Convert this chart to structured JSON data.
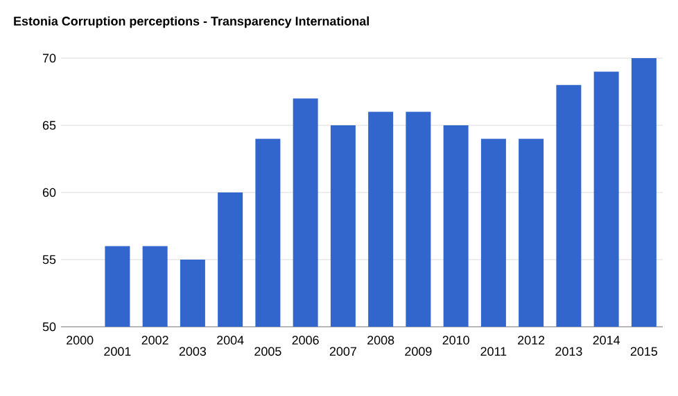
{
  "chart_data": {
    "type": "bar",
    "title": "Estonia Corruption perceptions - Transparency International",
    "categories": [
      "2000",
      "2001",
      "2002",
      "2003",
      "2004",
      "2005",
      "2006",
      "2007",
      "2008",
      "2009",
      "2010",
      "2011",
      "2012",
      "2013",
      "2014",
      "2015"
    ],
    "values": [
      null,
      56,
      56,
      55,
      60,
      64,
      67,
      65,
      66,
      66,
      65,
      64,
      64,
      68,
      69,
      70
    ],
    "color": "#3366cc",
    "ylim": [
      50,
      70
    ],
    "yticks": [
      50,
      55,
      60,
      65,
      70
    ],
    "grid": "y"
  }
}
